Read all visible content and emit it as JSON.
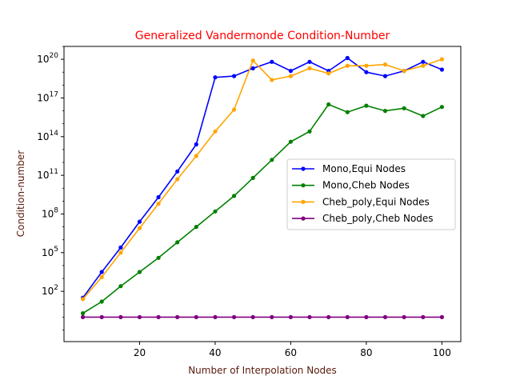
{
  "chart_data": {
    "type": "line",
    "title": "Generalized Vandermonde Condition-Number",
    "xlabel": "Number of Interpolation Nodes",
    "ylabel": "Condition-number",
    "yscale": "log",
    "xlim": [
      0,
      105
    ],
    "ylim_log10": [
      -1.9,
      21.0
    ],
    "grid": false,
    "legend_position": "center-right",
    "colors": {
      "title": "#ff0000",
      "axis_labels": "#5a1a0d"
    },
    "x_ticks": [
      {
        "value": 20,
        "label": "20"
      },
      {
        "value": 40,
        "label": "40"
      },
      {
        "value": 60,
        "label": "60"
      },
      {
        "value": 80,
        "label": "80"
      },
      {
        "value": 100,
        "label": "100"
      }
    ],
    "y_ticks": [
      {
        "log10": 2,
        "base": "10",
        "exp": "2"
      },
      {
        "log10": 5,
        "base": "10",
        "exp": "5"
      },
      {
        "log10": 8,
        "base": "10",
        "exp": "8"
      },
      {
        "log10": 11,
        "base": "10",
        "exp": "11"
      },
      {
        "log10": 14,
        "base": "10",
        "exp": "14"
      },
      {
        "log10": 17,
        "base": "10",
        "exp": "17"
      },
      {
        "log10": 20,
        "base": "10",
        "exp": "20"
      }
    ],
    "x": [
      5,
      10,
      15,
      20,
      25,
      30,
      35,
      40,
      45,
      50,
      55,
      60,
      65,
      70,
      75,
      80,
      85,
      90,
      95,
      100
    ],
    "series": [
      {
        "name": "Mono,Equi Nodes",
        "color": "#0000ff",
        "log10_values": [
          1.5,
          3.5,
          5.4,
          7.4,
          9.3,
          11.3,
          13.4,
          18.6,
          18.7,
          19.3,
          19.8,
          19.1,
          19.8,
          19.1,
          20.1,
          19.0,
          18.7,
          19.1,
          19.8,
          19.2
        ]
      },
      {
        "name": "Mono,Cheb Nodes",
        "color": "#008000",
        "log10_values": [
          0.3,
          1.2,
          2.4,
          3.5,
          4.6,
          5.8,
          7.0,
          8.2,
          9.4,
          10.8,
          12.2,
          13.6,
          14.4,
          16.5,
          15.9,
          16.4,
          16.0,
          16.2,
          15.6,
          16.3
        ]
      },
      {
        "name": "Cheb_poly,Equi Nodes",
        "color": "#ffa500",
        "log10_values": [
          1.4,
          3.1,
          5.0,
          6.9,
          8.8,
          10.7,
          12.5,
          14.4,
          16.1,
          19.9,
          18.4,
          18.7,
          19.3,
          18.9,
          19.5,
          19.5,
          19.6,
          19.1,
          19.5,
          20.0
        ]
      },
      {
        "name": "Cheb_poly,Cheb Nodes",
        "color": "#800080",
        "log10_values": [
          0.0,
          0.0,
          0.0,
          0.0,
          0.0,
          0.0,
          0.0,
          0.0,
          0.0,
          0.0,
          0.0,
          0.0,
          0.0,
          0.0,
          0.0,
          0.0,
          0.0,
          0.0,
          0.0,
          0.0
        ]
      }
    ]
  }
}
